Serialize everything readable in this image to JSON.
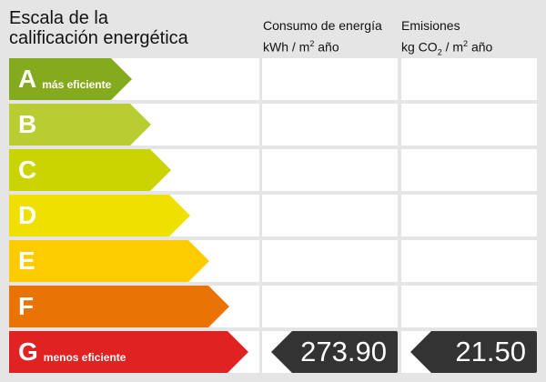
{
  "header": {
    "title_line1": "Escala de la",
    "title_line2": "calificación energética",
    "consumo": {
      "line1": "Consumo de energía",
      "unit_pre": "kWh / m",
      "unit_sup": "2",
      "unit_post": " año"
    },
    "emisiones": {
      "line1": "Emisiones",
      "unit_pre": "kg CO",
      "unit_sub": "2",
      "unit_mid": " / m",
      "unit_sup": "2",
      "unit_post": " año"
    }
  },
  "ratings": [
    {
      "letter": "A",
      "label": "más eficiente",
      "color": "#84ab1e"
    },
    {
      "letter": "B",
      "label": "",
      "color": "#b7cd31"
    },
    {
      "letter": "C",
      "label": "",
      "color": "#cad400"
    },
    {
      "letter": "D",
      "label": "",
      "color": "#f0e000"
    },
    {
      "letter": "E",
      "label": "",
      "color": "#fdcc00"
    },
    {
      "letter": "F",
      "label": "",
      "color": "#e97405"
    },
    {
      "letter": "G",
      "label": "menos eficiente",
      "color": "#e02222"
    }
  ],
  "result": {
    "rating": "G",
    "consumo": "273.90",
    "emisiones": "21.50"
  }
}
